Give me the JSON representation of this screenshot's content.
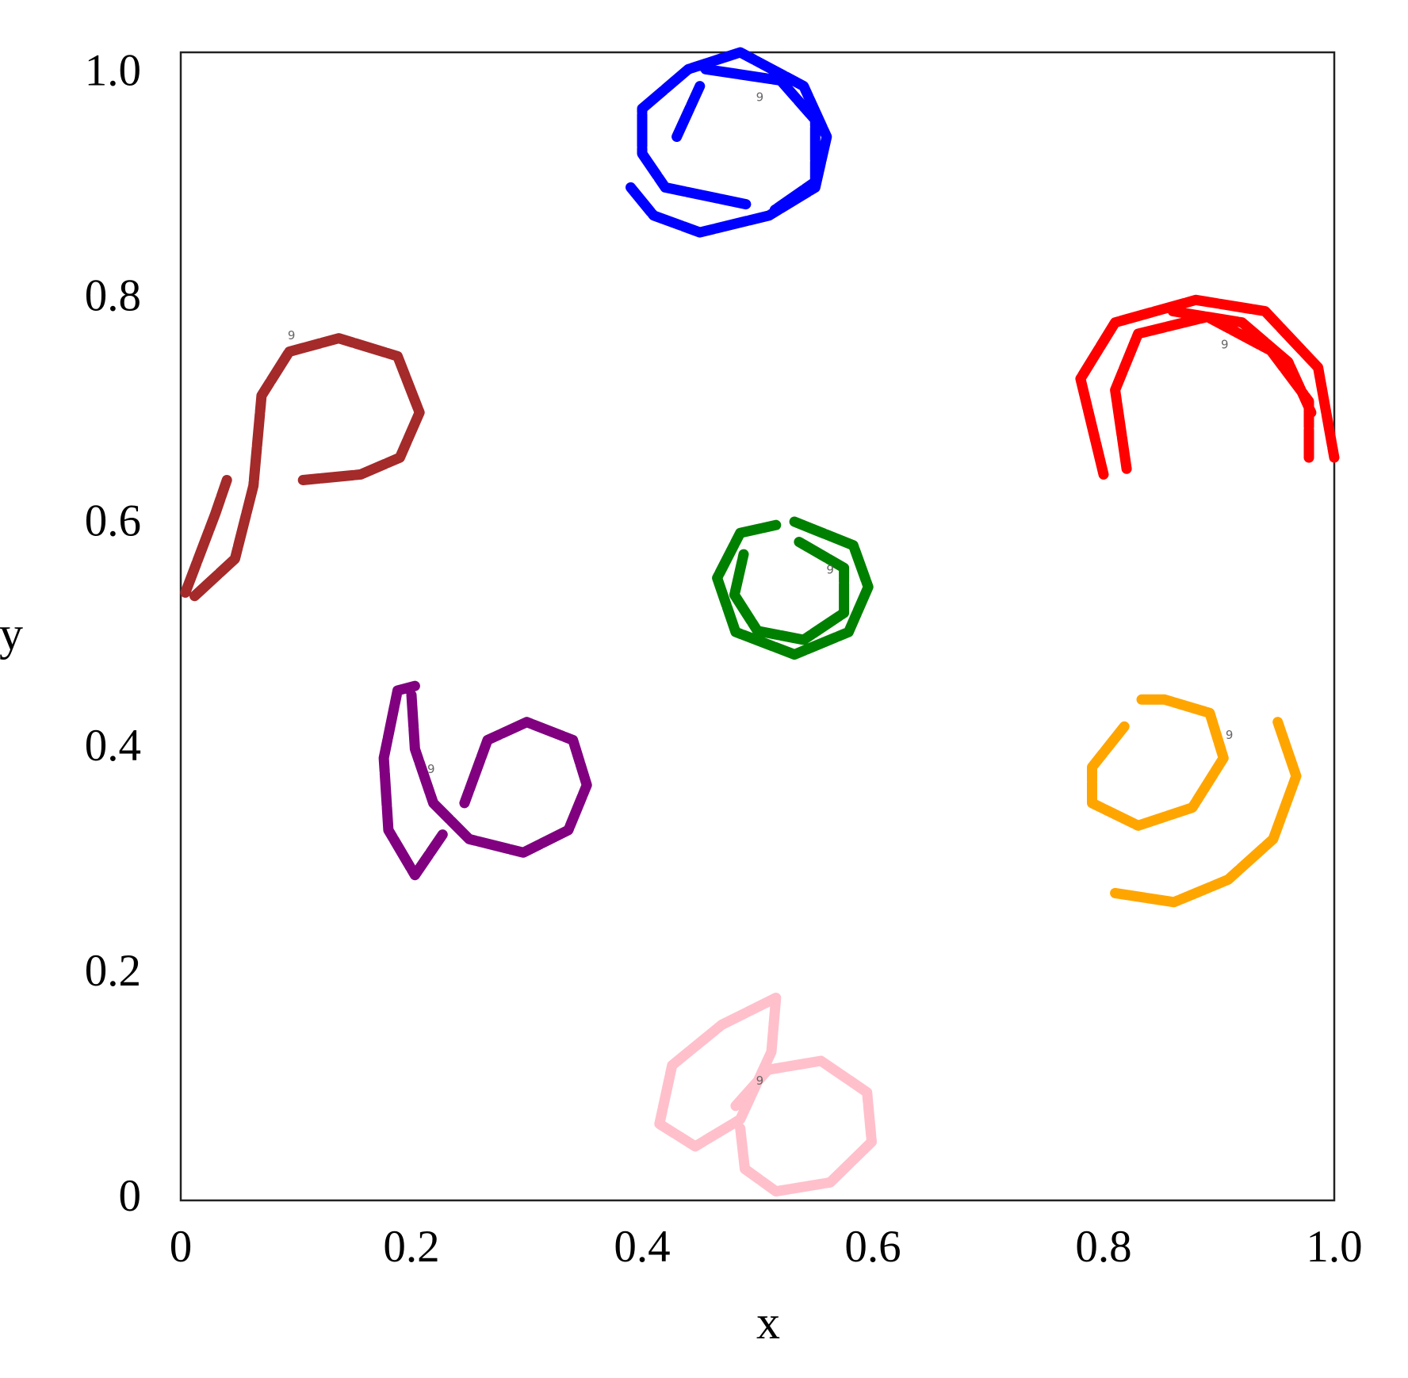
{
  "chart_data": {
    "type": "line",
    "xlabel": "x",
    "ylabel": "y",
    "xlim": [
      0,
      1
    ],
    "ylim": [
      0,
      1.02
    ],
    "xticks": [
      0,
      0.2,
      0.4,
      0.6,
      0.8,
      {
        "value": 1,
        "label": "1.0"
      }
    ],
    "yticks": [
      0,
      0.2,
      0.4,
      0.6,
      0.8,
      {
        "value": 1,
        "label": "1.0"
      }
    ],
    "series": [
      {
        "color": "#0000ff",
        "x": [
          0.39,
          0.41,
          0.45,
          0.51,
          0.55,
          0.56,
          0.54,
          0.485,
          0.44,
          0.4,
          0.4,
          0.42,
          0.49,
          null,
          0.455,
          0.52,
          0.55,
          0.55,
          0.515,
          null,
          0.43,
          0.45
        ],
        "values": [
          0.9,
          0.875,
          0.86,
          0.875,
          0.9,
          0.945,
          0.99,
          1.02,
          1.005,
          0.97,
          0.93,
          0.9,
          0.885,
          null,
          1.005,
          0.995,
          0.96,
          0.905,
          0.88,
          null,
          0.945,
          0.99
        ]
      },
      {
        "color": "#ff0000",
        "x": [
          0.8,
          0.78,
          0.81,
          0.88,
          0.94,
          0.986,
          1.0,
          null,
          0.82,
          0.81,
          0.83,
          0.89,
          0.945,
          0.978,
          0.978,
          null,
          0.86,
          0.92,
          0.96,
          0.98
        ],
        "values": [
          0.645,
          0.73,
          0.78,
          0.8,
          0.79,
          0.74,
          0.66,
          null,
          0.65,
          0.72,
          0.77,
          0.785,
          0.755,
          0.71,
          0.66,
          null,
          0.79,
          0.78,
          0.745,
          0.7
        ]
      },
      {
        "color": "#a52a2a",
        "x": [
          0.004,
          0.03,
          0.04,
          null,
          0.012,
          0.047,
          0.063,
          0.07,
          0.094,
          0.137,
          0.188,
          0.207,
          0.19,
          0.156,
          0.106
        ],
        "values": [
          0.54,
          0.61,
          0.64,
          null,
          0.537,
          0.57,
          0.635,
          0.715,
          0.754,
          0.766,
          0.75,
          0.7,
          0.66,
          0.645,
          0.64
        ]
      },
      {
        "color": "#008000",
        "x": [
          0.532,
          0.583,
          0.596,
          0.579,
          0.532,
          0.481,
          0.465,
          0.485,
          0.516,
          null,
          0.536,
          0.575,
          0.575,
          0.54,
          0.5,
          0.48,
          0.488
        ],
        "values": [
          0.603,
          0.582,
          0.545,
          0.505,
          0.485,
          0.505,
          0.553,
          0.593,
          0.6,
          null,
          0.585,
          0.562,
          0.522,
          0.498,
          0.506,
          0.538,
          0.574
        ]
      },
      {
        "color": "#800080",
        "x": [
          0.203,
          0.188,
          0.176,
          0.18,
          0.203,
          0.227,
          null,
          0.2,
          0.203,
          0.219,
          0.25,
          0.297,
          0.336,
          0.352,
          0.34,
          0.3,
          0.266,
          0.246
        ],
        "values": [
          0.457,
          0.453,
          0.393,
          0.329,
          0.289,
          0.325,
          null,
          0.449,
          0.401,
          0.353,
          0.321,
          0.309,
          0.329,
          0.369,
          0.409,
          0.425,
          0.409,
          0.353
        ]
      },
      {
        "color": "#ffa500",
        "x": [
          0.818,
          0.79,
          0.79,
          0.83,
          0.877,
          0.904,
          0.892,
          0.853,
          0.833,
          null,
          0.951,
          0.967,
          0.947,
          0.908,
          0.861,
          0.81
        ],
        "values": [
          0.421,
          0.385,
          0.353,
          0.333,
          0.349,
          0.393,
          0.433,
          0.445,
          0.445,
          null,
          0.425,
          0.377,
          0.321,
          0.285,
          0.265,
          0.273
        ]
      },
      {
        "color": "#ffc0cb",
        "x": [
          0.516,
          0.469,
          0.426,
          0.415,
          0.446,
          0.485,
          0.512,
          0.516,
          null,
          0.481,
          0.509,
          0.555,
          0.595,
          0.599,
          0.563,
          0.516,
          0.489,
          0.485
        ],
        "values": [
          0.18,
          0.156,
          0.12,
          0.068,
          0.048,
          0.072,
          0.132,
          0.18,
          null,
          0.084,
          0.116,
          0.124,
          0.096,
          0.052,
          0.016,
          0.008,
          0.028,
          0.064
        ]
      }
    ],
    "annotations": [
      {
        "text": "9",
        "x": 0.502,
        "y": 0.98
      },
      {
        "text": "9",
        "x": 0.096,
        "y": 0.768
      },
      {
        "text": "9",
        "x": 0.905,
        "y": 0.76
      },
      {
        "text": "9",
        "x": 0.563,
        "y": 0.56
      },
      {
        "text": "9",
        "x": 0.217,
        "y": 0.383
      },
      {
        "text": "9",
        "x": 0.909,
        "y": 0.413
      },
      {
        "text": "9",
        "x": 0.502,
        "y": 0.106
      }
    ]
  }
}
